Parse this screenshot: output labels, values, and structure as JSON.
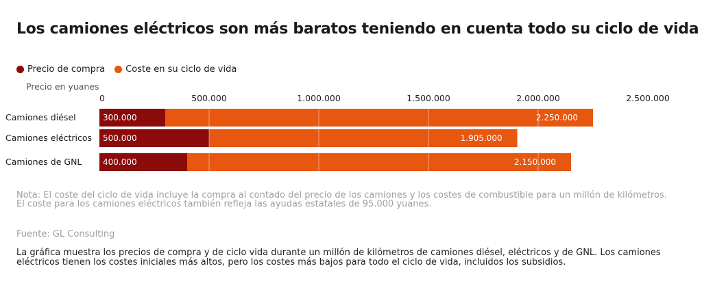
{
  "title": "Los camiones eléctricos son más baratos teniendo en cuenta todo su ciclo de vida",
  "legend": {
    "purchase_label": "Precio de compra",
    "lifecycle_label": "Coste en su ciclo de vida"
  },
  "colors": {
    "purchase": "#8b0a0a",
    "lifecycle": "#e8570f"
  },
  "note": "Nota: El coste del ciclo de vida incluye la compra al contado del precio de los camiones y los costes de combustible para un millón de kilómetros. El coste para los camiones eléctricos también refleja las ayudas estatales de 95.000 yuanes.",
  "source": "Fuente: GL Consulting",
  "description": "La gráfica muestra los precios de compra y de ciclo vida durante un millón de kilómetros de camiones diésel, eléctricos y de GNL. Los camiones eléctricos tienen los costes iniciales más altos, pero los costes más bajos para todo el ciclo de vida, incluidos los subsidios.",
  "chart_data": {
    "type": "bar",
    "orientation": "horizontal",
    "stacked": "overlay",
    "xlabel": "Precio en yuanes",
    "xlim": [
      0,
      2500000
    ],
    "ticks": [
      0,
      500000,
      1000000,
      1500000,
      2000000,
      2500000
    ],
    "tick_labels": [
      "0",
      "500.000",
      "1.000.000",
      "1.500.000",
      "2.000.000",
      "2.500.000"
    ],
    "categories": [
      "Camiones diésel",
      "Camiones eléctricos",
      "Camiones de GNL"
    ],
    "series": [
      {
        "name": "Precio de compra",
        "values": [
          300000,
          500000,
          400000
        ],
        "labels": [
          "300.000",
          "500.000",
          "400.000"
        ]
      },
      {
        "name": "Coste en su ciclo de vida",
        "values": [
          2250000,
          1905000,
          2150000
        ],
        "labels": [
          "2.250.000",
          "1.905.000",
          "2.150.000"
        ]
      }
    ],
    "grid": true,
    "legend_position": "top-left"
  }
}
